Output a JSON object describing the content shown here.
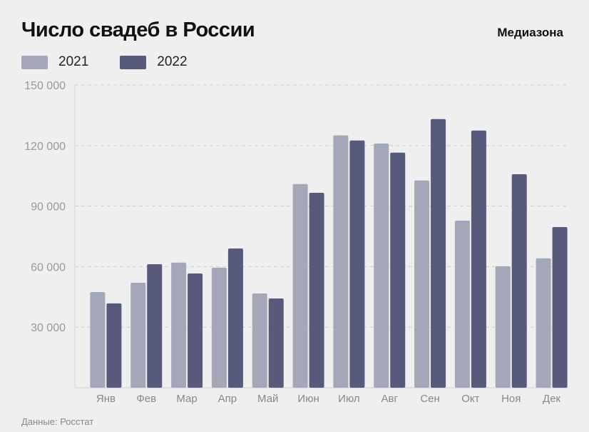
{
  "title": "Число свадеб в России",
  "brand": "Медиазона",
  "source": "Данные: Росстат",
  "chart_data": {
    "type": "bar",
    "title": "Число свадеб в России",
    "categories": [
      "Янв",
      "Фев",
      "Мар",
      "Апр",
      "Май",
      "Июн",
      "Июл",
      "Авг",
      "Сен",
      "Окт",
      "Ноя",
      "Дек"
    ],
    "series": [
      {
        "name": "2021",
        "color": "#a3a7b8",
        "values": [
          47400,
          52000,
          62000,
          59500,
          46700,
          100900,
          125000,
          121000,
          102700,
          82800,
          60200,
          64100
        ]
      },
      {
        "name": "2022",
        "color": "#575a7a",
        "values": [
          41800,
          61200,
          56600,
          69000,
          44200,
          96600,
          122500,
          116500,
          133100,
          127400,
          105800,
          79600
        ]
      }
    ],
    "ylim": [
      0,
      150000
    ],
    "yticks": [
      30000,
      60000,
      90000,
      120000,
      150000
    ],
    "ytick_labels": [
      "30 000",
      "60 000",
      "90 000",
      "120 000",
      "150 000"
    ],
    "grid": true,
    "legend": "top-left"
  }
}
